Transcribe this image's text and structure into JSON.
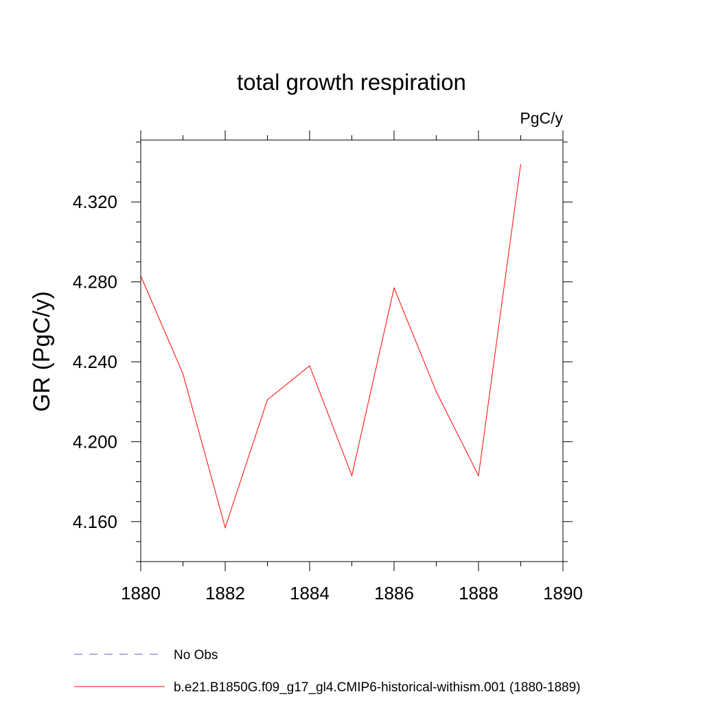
{
  "chart_data": {
    "type": "line",
    "title": "total growth respiration",
    "units_label": "PgC/y",
    "ylabel": "GR  (PgC/y)",
    "xlabel": "",
    "xlim": [
      1880,
      1890
    ],
    "ylim": [
      4.14,
      4.351
    ],
    "x_ticks": [
      1880,
      1882,
      1884,
      1886,
      1888,
      1890
    ],
    "x_tick_labels": [
      "1880",
      "1882",
      "1884",
      "1886",
      "1888",
      "1890"
    ],
    "y_ticks": [
      4.16,
      4.2,
      4.24,
      4.28,
      4.32
    ],
    "y_tick_labels": [
      "4.160",
      "4.200",
      "4.240",
      "4.280",
      "4.320"
    ],
    "series": [
      {
        "name": "b.e21.B1850G.f09_g17_gl4.CMIP6-historical-withism.001 (1880-1889)",
        "color": "#ff0000",
        "x": [
          1880,
          1881,
          1882,
          1883,
          1884,
          1885,
          1886,
          1887,
          1888,
          1889
        ],
        "values": [
          4.283,
          4.234,
          4.157,
          4.221,
          4.238,
          4.183,
          4.277,
          4.225,
          4.183,
          4.339
        ]
      }
    ],
    "legend": {
      "placement": "bottom-left",
      "entries": [
        {
          "label": "No Obs",
          "color": "#6a5acd",
          "dashed": true
        },
        {
          "label": "b.e21.B1850G.f09_g17_gl4.CMIP6-historical-withism.001 (1880-1889)",
          "color": "#ff0000",
          "dashed": false
        }
      ]
    }
  }
}
